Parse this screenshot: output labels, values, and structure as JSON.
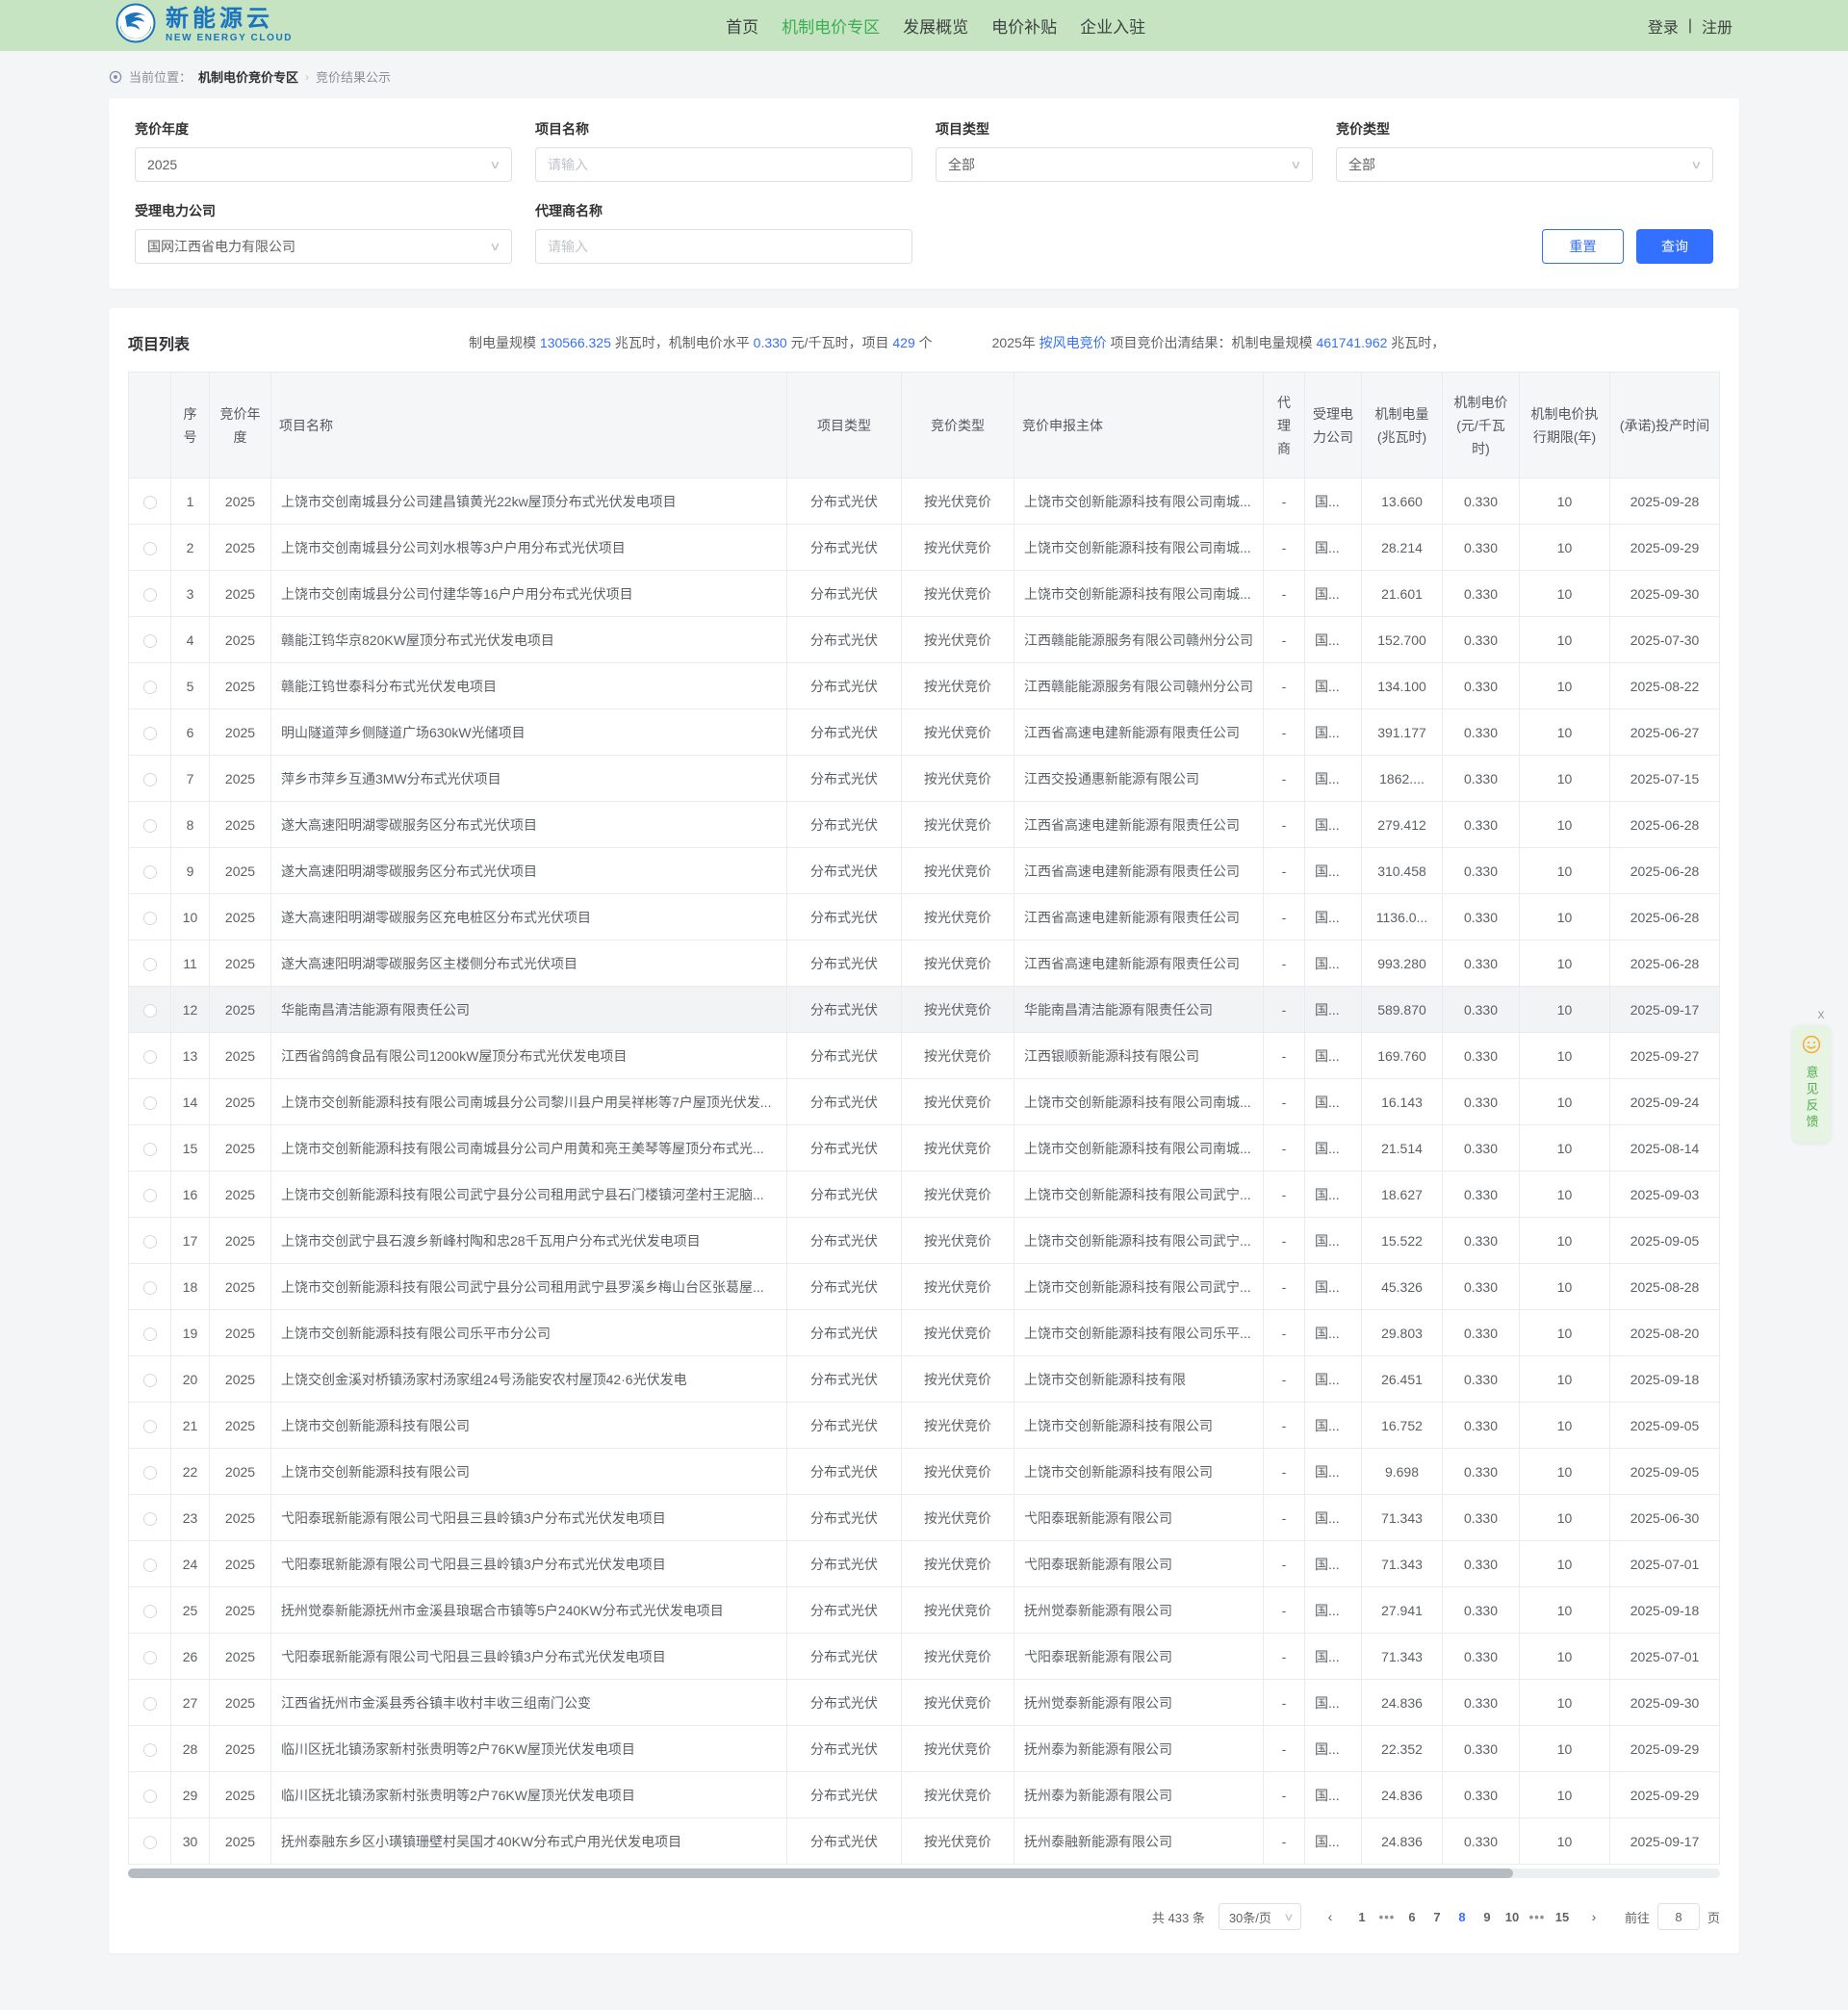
{
  "nav": {
    "logo_title": "新能源云",
    "logo_subtitle": "NEW ENERGY CLOUD",
    "items": [
      {
        "label": "首页",
        "active": false
      },
      {
        "label": "机制电价专区",
        "active": true
      },
      {
        "label": "发展概览",
        "active": false
      },
      {
        "label": "电价补贴",
        "active": false
      },
      {
        "label": "企业入驻",
        "active": false
      }
    ],
    "login": "登录",
    "divider": "|",
    "register": "注册"
  },
  "breadcrumb": {
    "prefix": "当前位置：",
    "section": "机制电价竞价专区",
    "separator": "›",
    "current": "竞价结果公示"
  },
  "filters": {
    "bid_year": {
      "label": "竞价年度",
      "value": "2025"
    },
    "project_name": {
      "label": "项目名称",
      "placeholder": "请输入"
    },
    "project_type": {
      "label": "项目类型",
      "value": "全部"
    },
    "bid_type": {
      "label": "竞价类型",
      "value": "全部"
    },
    "power_company": {
      "label": "受理电力公司",
      "value": "国网江西省电力有限公司"
    },
    "agent_name": {
      "label": "代理商名称",
      "placeholder": "请输入"
    },
    "reset_label": "重置",
    "search_label": "查询"
  },
  "list_header": {
    "title": "项目列表",
    "stats1": [
      {
        "t": "制电量规模 "
      },
      {
        "t": "130566.325",
        "hl": true
      },
      {
        "t": " 兆瓦时，机制电价水平 "
      },
      {
        "t": "0.330",
        "hl": true
      },
      {
        "t": " 元/千瓦时，项目 "
      },
      {
        "t": "429",
        "hl": true
      },
      {
        "t": " 个"
      }
    ],
    "stats2": [
      {
        "t": "2025年 "
      },
      {
        "t": "按风电竞价",
        "hl": true,
        "link": true
      },
      {
        "t": " 项目竞价出清结果：机制电量规模 "
      },
      {
        "t": "461741.962",
        "hl": true
      },
      {
        "t": " 兆瓦时，"
      }
    ]
  },
  "table": {
    "columns": [
      "",
      "序号",
      "竞价年度",
      "项目名称",
      "项目类型",
      "竞价类型",
      "竞价申报主体",
      "代理商",
      "受理电力公司",
      "机制电量(兆瓦时)",
      "机制电价(元/千瓦时)",
      "机制电价执行期限(年)",
      "(承诺)投产时间"
    ],
    "row_fields": [
      "seq",
      "year",
      "project",
      "project_type",
      "bid_type",
      "bidder",
      "agent",
      "company",
      "energy",
      "price",
      "term",
      "date"
    ],
    "highlighted_row_seq": "12",
    "rows": [
      [
        "1",
        "2025",
        "上饶市交创南城县分公司建昌镇黄光22kw屋顶分布式光伏发电项目",
        "分布式光伏",
        "按光伏竞价",
        "上饶市交创新能源科技有限公司南城...",
        "-",
        "国...",
        "13.660",
        "0.330",
        "10",
        "2025-09-28"
      ],
      [
        "2",
        "2025",
        "上饶市交创南城县分公司刘水根等3户户用分布式光伏项目",
        "分布式光伏",
        "按光伏竞价",
        "上饶市交创新能源科技有限公司南城...",
        "-",
        "国...",
        "28.214",
        "0.330",
        "10",
        "2025-09-29"
      ],
      [
        "3",
        "2025",
        "上饶市交创南城县分公司付建华等16户户用分布式光伏项目",
        "分布式光伏",
        "按光伏竞价",
        "上饶市交创新能源科技有限公司南城...",
        "-",
        "国...",
        "21.601",
        "0.330",
        "10",
        "2025-09-30"
      ],
      [
        "4",
        "2025",
        "赣能江钨华京820KW屋顶分布式光伏发电项目",
        "分布式光伏",
        "按光伏竞价",
        "江西赣能能源服务有限公司赣州分公司",
        "-",
        "国...",
        "152.700",
        "0.330",
        "10",
        "2025-07-30"
      ],
      [
        "5",
        "2025",
        "赣能江钨世泰科分布式光伏发电项目",
        "分布式光伏",
        "按光伏竞价",
        "江西赣能能源服务有限公司赣州分公司",
        "-",
        "国...",
        "134.100",
        "0.330",
        "10",
        "2025-08-22"
      ],
      [
        "6",
        "2025",
        "明山隧道萍乡侧隧道广场630kW光储项目",
        "分布式光伏",
        "按光伏竞价",
        "江西省高速电建新能源有限责任公司",
        "-",
        "国...",
        "391.177",
        "0.330",
        "10",
        "2025-06-27"
      ],
      [
        "7",
        "2025",
        "萍乡市萍乡互通3MW分布式光伏项目",
        "分布式光伏",
        "按光伏竞价",
        "江西交投通惠新能源有限公司",
        "-",
        "国...",
        "1862....",
        "0.330",
        "10",
        "2025-07-15"
      ],
      [
        "8",
        "2025",
        "遂大高速阳明湖零碳服务区分布式光伏项目",
        "分布式光伏",
        "按光伏竞价",
        "江西省高速电建新能源有限责任公司",
        "-",
        "国...",
        "279.412",
        "0.330",
        "10",
        "2025-06-28"
      ],
      [
        "9",
        "2025",
        "遂大高速阳明湖零碳服务区分布式光伏项目",
        "分布式光伏",
        "按光伏竞价",
        "江西省高速电建新能源有限责任公司",
        "-",
        "国...",
        "310.458",
        "0.330",
        "10",
        "2025-06-28"
      ],
      [
        "10",
        "2025",
        "遂大高速阳明湖零碳服务区充电桩区分布式光伏项目",
        "分布式光伏",
        "按光伏竞价",
        "江西省高速电建新能源有限责任公司",
        "-",
        "国...",
        "1136.0...",
        "0.330",
        "10",
        "2025-06-28"
      ],
      [
        "11",
        "2025",
        "遂大高速阳明湖零碳服务区主楼侧分布式光伏项目",
        "分布式光伏",
        "按光伏竞价",
        "江西省高速电建新能源有限责任公司",
        "-",
        "国...",
        "993.280",
        "0.330",
        "10",
        "2025-06-28"
      ],
      [
        "12",
        "2025",
        "华能南昌清洁能源有限责任公司",
        "分布式光伏",
        "按光伏竞价",
        "华能南昌清洁能源有限责任公司",
        "-",
        "国...",
        "589.870",
        "0.330",
        "10",
        "2025-09-17"
      ],
      [
        "13",
        "2025",
        "江西省鸽鸽食品有限公司1200kW屋顶分布式光伏发电项目",
        "分布式光伏",
        "按光伏竞价",
        "江西银顺新能源科技有限公司",
        "-",
        "国...",
        "169.760",
        "0.330",
        "10",
        "2025-09-27"
      ],
      [
        "14",
        "2025",
        "上饶市交创新能源科技有限公司南城县分公司黎川县户用吴祥彬等7户屋顶光伏发...",
        "分布式光伏",
        "按光伏竞价",
        "上饶市交创新能源科技有限公司南城...",
        "-",
        "国...",
        "16.143",
        "0.330",
        "10",
        "2025-09-24"
      ],
      [
        "15",
        "2025",
        "上饶市交创新能源科技有限公司南城县分公司户用黄和亮王美琴等屋顶分布式光...",
        "分布式光伏",
        "按光伏竞价",
        "上饶市交创新能源科技有限公司南城...",
        "-",
        "国...",
        "21.514",
        "0.330",
        "10",
        "2025-08-14"
      ],
      [
        "16",
        "2025",
        "上饶市交创新能源科技有限公司武宁县分公司租用武宁县石门楼镇河垄村王泥脑...",
        "分布式光伏",
        "按光伏竞价",
        "上饶市交创新能源科技有限公司武宁...",
        "-",
        "国...",
        "18.627",
        "0.330",
        "10",
        "2025-09-03"
      ],
      [
        "17",
        "2025",
        "上饶市交创武宁县石渡乡新峰村陶和忠28千瓦用户分布式光伏发电项目",
        "分布式光伏",
        "按光伏竞价",
        "上饶市交创新能源科技有限公司武宁...",
        "-",
        "国...",
        "15.522",
        "0.330",
        "10",
        "2025-09-05"
      ],
      [
        "18",
        "2025",
        "上饶市交创新能源科技有限公司武宁县分公司租用武宁县罗溪乡梅山台区张葛屋...",
        "分布式光伏",
        "按光伏竞价",
        "上饶市交创新能源科技有限公司武宁...",
        "-",
        "国...",
        "45.326",
        "0.330",
        "10",
        "2025-08-28"
      ],
      [
        "19",
        "2025",
        "上饶市交创新能源科技有限公司乐平市分公司",
        "分布式光伏",
        "按光伏竞价",
        "上饶市交创新能源科技有限公司乐平...",
        "-",
        "国...",
        "29.803",
        "0.330",
        "10",
        "2025-08-20"
      ],
      [
        "20",
        "2025",
        "上饶交创金溪对桥镇汤家村汤家组24号汤能安农村屋顶42·6光伏发电",
        "分布式光伏",
        "按光伏竞价",
        "上饶市交创新能源科技有限",
        "-",
        "国...",
        "26.451",
        "0.330",
        "10",
        "2025-09-18"
      ],
      [
        "21",
        "2025",
        "上饶市交创新能源科技有限公司",
        "分布式光伏",
        "按光伏竞价",
        "上饶市交创新能源科技有限公司",
        "-",
        "国...",
        "16.752",
        "0.330",
        "10",
        "2025-09-05"
      ],
      [
        "22",
        "2025",
        "上饶市交创新能源科技有限公司",
        "分布式光伏",
        "按光伏竞价",
        "上饶市交创新能源科技有限公司",
        "-",
        "国...",
        "9.698",
        "0.330",
        "10",
        "2025-09-05"
      ],
      [
        "23",
        "2025",
        "弋阳泰珉新能源有限公司弋阳县三县岭镇3户分布式光伏发电项目",
        "分布式光伏",
        "按光伏竞价",
        "弋阳泰珉新能源有限公司",
        "-",
        "国...",
        "71.343",
        "0.330",
        "10",
        "2025-06-30"
      ],
      [
        "24",
        "2025",
        "弋阳泰珉新能源有限公司弋阳县三县岭镇3户分布式光伏发电项目",
        "分布式光伏",
        "按光伏竞价",
        "弋阳泰珉新能源有限公司",
        "-",
        "国...",
        "71.343",
        "0.330",
        "10",
        "2025-07-01"
      ],
      [
        "25",
        "2025",
        "抚州觉泰新能源抚州市金溪县琅琚合市镇等5户240KW分布式光伏发电项目",
        "分布式光伏",
        "按光伏竞价",
        "抚州觉泰新能源有限公司",
        "-",
        "国...",
        "27.941",
        "0.330",
        "10",
        "2025-09-18"
      ],
      [
        "26",
        "2025",
        "弋阳泰珉新能源有限公司弋阳县三县岭镇3户分布式光伏发电项目",
        "分布式光伏",
        "按光伏竞价",
        "弋阳泰珉新能源有限公司",
        "-",
        "国...",
        "71.343",
        "0.330",
        "10",
        "2025-07-01"
      ],
      [
        "27",
        "2025",
        "江西省抚州市金溪县秀谷镇丰收村丰收三组南门公变",
        "分布式光伏",
        "按光伏竞价",
        "抚州觉泰新能源有限公司",
        "-",
        "国...",
        "24.836",
        "0.330",
        "10",
        "2025-09-30"
      ],
      [
        "28",
        "2025",
        "临川区抚北镇汤家新村张贵明等2户76KW屋顶光伏发电项目",
        "分布式光伏",
        "按光伏竞价",
        "抚州泰为新能源有限公司",
        "-",
        "国...",
        "22.352",
        "0.330",
        "10",
        "2025-09-29"
      ],
      [
        "29",
        "2025",
        "临川区抚北镇汤家新村张贵明等2户76KW屋顶光伏发电项目",
        "分布式光伏",
        "按光伏竞价",
        "抚州泰为新能源有限公司",
        "-",
        "国...",
        "24.836",
        "0.330",
        "10",
        "2025-09-29"
      ],
      [
        "30",
        "2025",
        "抚州泰融东乡区小璜镇珊壁村吴国才40KW分布式户用光伏发电项目",
        "分布式光伏",
        "按光伏竞价",
        "抚州泰融新能源有限公司",
        "-",
        "国...",
        "24.836",
        "0.330",
        "10",
        "2025-09-17"
      ]
    ]
  },
  "pagination": {
    "total": "共 433 条",
    "page_size": "30条/页",
    "prev": "‹",
    "next": "›",
    "pages": [
      "1",
      "•••",
      "6",
      "7",
      "8",
      "9",
      "10",
      "•••",
      "15"
    ],
    "active_page": "8",
    "goto_prefix": "前往",
    "goto_value": "8",
    "goto_suffix": "页"
  },
  "feedback": {
    "close": "x",
    "label": "意见反馈"
  },
  "colors": {
    "navbar_green": "#c7e4c2",
    "nav_active_green": "#3aae55",
    "accent_blue": "#3370ff",
    "logo_blue": "#1a74c0"
  }
}
